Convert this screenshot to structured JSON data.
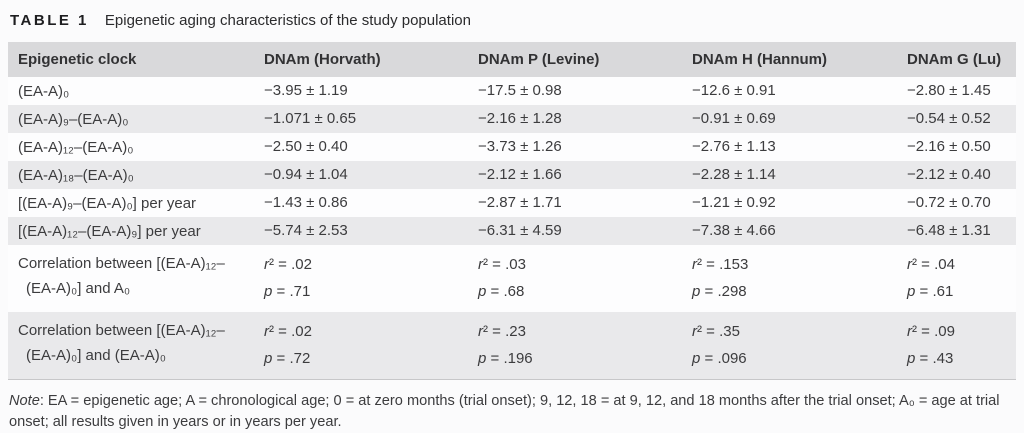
{
  "title": {
    "tag": "TABLE 1",
    "text": "Epigenetic aging characteristics of the study population"
  },
  "colors": {
    "header_bg": "#d9d9db",
    "stripe_bg": "#e9e9eb",
    "row_bg": "#fdfdfe",
    "text": "#3c3c3e"
  },
  "table": {
    "columns": [
      "Epigenetic clock",
      "DNAm (Horvath)",
      "DNAm P (Levine)",
      "DNAm H (Hannum)",
      "DNAm G (Lu)"
    ],
    "rows": [
      {
        "label": [
          "(EA-A)₀"
        ],
        "values": [
          "−3.95 ± 1.19",
          "−17.5 ± 0.98",
          "−12.6 ± 0.91",
          "−2.80 ± 1.45"
        ]
      },
      {
        "label": [
          "(EA-A)₉–(EA-A)₀"
        ],
        "values": [
          "−1.071 ± 0.65",
          "−2.16 ± 1.28",
          "−0.91 ± 0.69",
          "−0.54 ± 0.52"
        ]
      },
      {
        "label": [
          "(EA-A)₁₂–(EA-A)₀"
        ],
        "values": [
          "−2.50 ± 0.40",
          "−3.73 ± 1.26",
          "−2.76 ± 1.13",
          "−2.16 ± 0.50"
        ]
      },
      {
        "label": [
          "(EA-A)₁₈–(EA-A)₀"
        ],
        "values": [
          "−0.94 ± 1.04",
          "−2.12 ± 1.66",
          "−2.28 ± 1.14",
          "−2.12 ± 0.40"
        ]
      },
      {
        "label": [
          "[(EA-A)₉–(EA-A)₀] per year"
        ],
        "values": [
          "−1.43 ± 0.86",
          "−2.87 ± 1.71",
          "−1.21 ± 0.92",
          "−0.72 ± 0.70"
        ]
      },
      {
        "label": [
          "[(EA-A)₁₂–(EA-A)₉] per year"
        ],
        "values": [
          "−5.74 ± 2.53",
          "−6.31 ± 4.59",
          "−7.38 ± 4.66",
          "−6.48 ± 1.31"
        ]
      },
      {
        "label": [
          "Correlation between [(EA-A)₁₂–",
          "(EA-A)₀] and A₀"
        ],
        "stats": [
          {
            "r2": "r² = .02",
            "p": "p = .71"
          },
          {
            "r2": "r² = .03",
            "p": "p = .68"
          },
          {
            "r2": "r² = .153",
            "p": "p = .298"
          },
          {
            "r2": "r² = .04",
            "p": "p = .61"
          }
        ]
      },
      {
        "label": [
          "Correlation between [(EA-A)₁₂–",
          "(EA-A)₀] and (EA-A)₀"
        ],
        "stats": [
          {
            "r2": "r² = .02",
            "p": "p = .72"
          },
          {
            "r2": "r² = .23",
            "p": "p = .196"
          },
          {
            "r2": "r² = .35",
            "p": "p = .096"
          },
          {
            "r2": "r² = .09",
            "p": "p = .43"
          }
        ]
      }
    ]
  },
  "note": {
    "label": "Note",
    "text": ": EA = epigenetic age; A = chronological age; 0 = at zero months (trial onset); 9, 12, 18 = at 9, 12, and 18 months after the trial onset; A₀ = age at trial onset; all results given in years or in years per year."
  }
}
